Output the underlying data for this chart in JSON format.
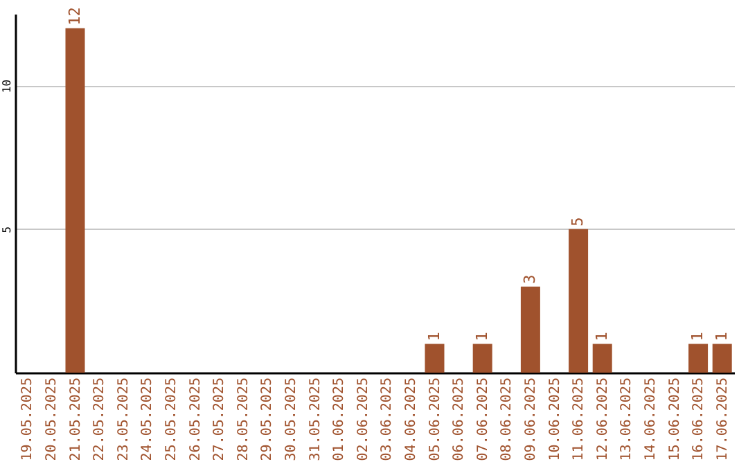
{
  "chart_data": {
    "type": "bar",
    "categories": [
      "19.05.2025",
      "20.05.2025",
      "21.05.2025",
      "22.05.2025",
      "23.05.2025",
      "24.05.2025",
      "25.05.2025",
      "26.05.2025",
      "27.05.2025",
      "28.05.2025",
      "29.05.2025",
      "30.05.2025",
      "31.05.2025",
      "01.06.2025",
      "02.06.2025",
      "03.06.2025",
      "04.06.2025",
      "05.06.2025",
      "06.06.2025",
      "07.06.2025",
      "08.06.2025",
      "09.06.2025",
      "10.06.2025",
      "11.06.2025",
      "12.06.2025",
      "13.06.2025",
      "14.06.2025",
      "15.06.2025",
      "16.06.2025",
      "17.06.2025"
    ],
    "values": [
      0,
      0,
      12,
      0,
      0,
      0,
      0,
      0,
      0,
      0,
      0,
      0,
      0,
      0,
      0,
      0,
      0,
      1,
      0,
      1,
      0,
      3,
      0,
      5,
      1,
      0,
      0,
      0,
      1,
      1
    ],
    "value_labels": [
      null,
      null,
      "12",
      null,
      null,
      null,
      null,
      null,
      null,
      null,
      null,
      null,
      null,
      null,
      null,
      null,
      null,
      "1",
      null,
      "1",
      null,
      "3",
      null,
      "5",
      "1",
      null,
      null,
      null,
      "1",
      "1"
    ],
    "color": "#a0522d",
    "ylim": [
      0,
      12.5
    ],
    "yticks": [
      5,
      10
    ],
    "grid": "y"
  }
}
